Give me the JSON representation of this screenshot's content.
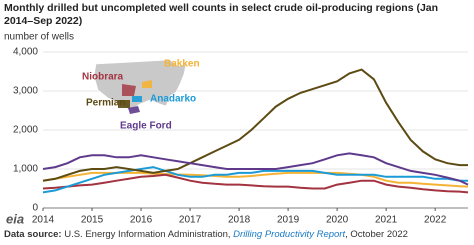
{
  "chart_data": {
    "type": "line",
    "title": "Monthly drilled but uncompleted well counts in select crude oil-producing regions (Jan 2014–Sep 2022)",
    "y_label": "number of wells",
    "x": [
      2014,
      2014.25,
      2014.5,
      2014.75,
      2015,
      2015.25,
      2015.5,
      2015.75,
      2016,
      2016.25,
      2016.5,
      2016.75,
      2017,
      2017.25,
      2017.5,
      2017.75,
      2018,
      2018.25,
      2018.5,
      2018.75,
      2019,
      2019.25,
      2019.5,
      2019.75,
      2020,
      2020.25,
      2020.5,
      2020.75,
      2021,
      2021.25,
      2021.5,
      2021.75,
      2022,
      2022.25,
      2022.5,
      2022.67
    ],
    "xlim": [
      2014,
      2022.67
    ],
    "xticks": [
      2014,
      2015,
      2016,
      2017,
      2018,
      2019,
      2020,
      2021,
      2022
    ],
    "ylim": [
      0,
      4000
    ],
    "yticks": [
      0,
      {
        "value": 1000,
        "label": "1,000"
      },
      {
        "value": 2000,
        "label": "2,000"
      },
      {
        "value": 3000,
        "label": "3,000"
      },
      {
        "value": 4000,
        "label": "4,000"
      }
    ],
    "grid": true,
    "series": [
      {
        "name": "Bakken",
        "color": "#f5b335",
        "values": [
          700,
          750,
          800,
          850,
          900,
          900,
          900,
          900,
          900,
          880,
          870,
          860,
          850,
          840,
          820,
          800,
          800,
          820,
          850,
          880,
          900,
          900,
          900,
          900,
          900,
          880,
          850,
          800,
          700,
          650,
          650,
          620,
          600,
          580,
          560,
          550
        ]
      },
      {
        "name": "Niobrara",
        "color": "#a33340",
        "values": [
          500,
          520,
          550,
          580,
          600,
          650,
          700,
          750,
          800,
          820,
          850,
          780,
          700,
          650,
          620,
          600,
          600,
          580,
          560,
          550,
          550,
          520,
          500,
          500,
          600,
          650,
          700,
          700,
          600,
          550,
          520,
          480,
          450,
          430,
          420,
          400
        ]
      },
      {
        "name": "Anadarko",
        "color": "#1a9bd7",
        "values": [
          400,
          450,
          550,
          650,
          750,
          850,
          900,
          950,
          1000,
          1050,
          950,
          850,
          800,
          800,
          850,
          850,
          900,
          900,
          950,
          950,
          950,
          950,
          950,
          900,
          850,
          850,
          850,
          850,
          800,
          800,
          800,
          800,
          750,
          750,
          700,
          700
        ]
      },
      {
        "name": "Permian",
        "color": "#5c4b13",
        "values": [
          700,
          750,
          850,
          950,
          1000,
          1000,
          1050,
          1000,
          950,
          900,
          950,
          1000,
          1150,
          1300,
          1450,
          1600,
          1750,
          2000,
          2300,
          2600,
          2800,
          2950,
          3050,
          3150,
          3250,
          3450,
          3550,
          3300,
          2700,
          2200,
          1750,
          1450,
          1250,
          1150,
          1100,
          1100
        ]
      },
      {
        "name": "Eagle Ford",
        "color": "#5f3a8c",
        "values": [
          1000,
          1050,
          1150,
          1300,
          1350,
          1350,
          1300,
          1300,
          1350,
          1300,
          1250,
          1200,
          1150,
          1100,
          1050,
          1000,
          1000,
          1000,
          1000,
          1000,
          1050,
          1100,
          1150,
          1250,
          1350,
          1400,
          1350,
          1300,
          1150,
          1050,
          950,
          900,
          850,
          780,
          700,
          600
        ]
      }
    ],
    "logo": "eia",
    "source_label": "Data source:",
    "source_text": "U.S. Energy Information Administration,",
    "source_report": "Drilling Productivity Report",
    "source_date": ", October 2022"
  }
}
